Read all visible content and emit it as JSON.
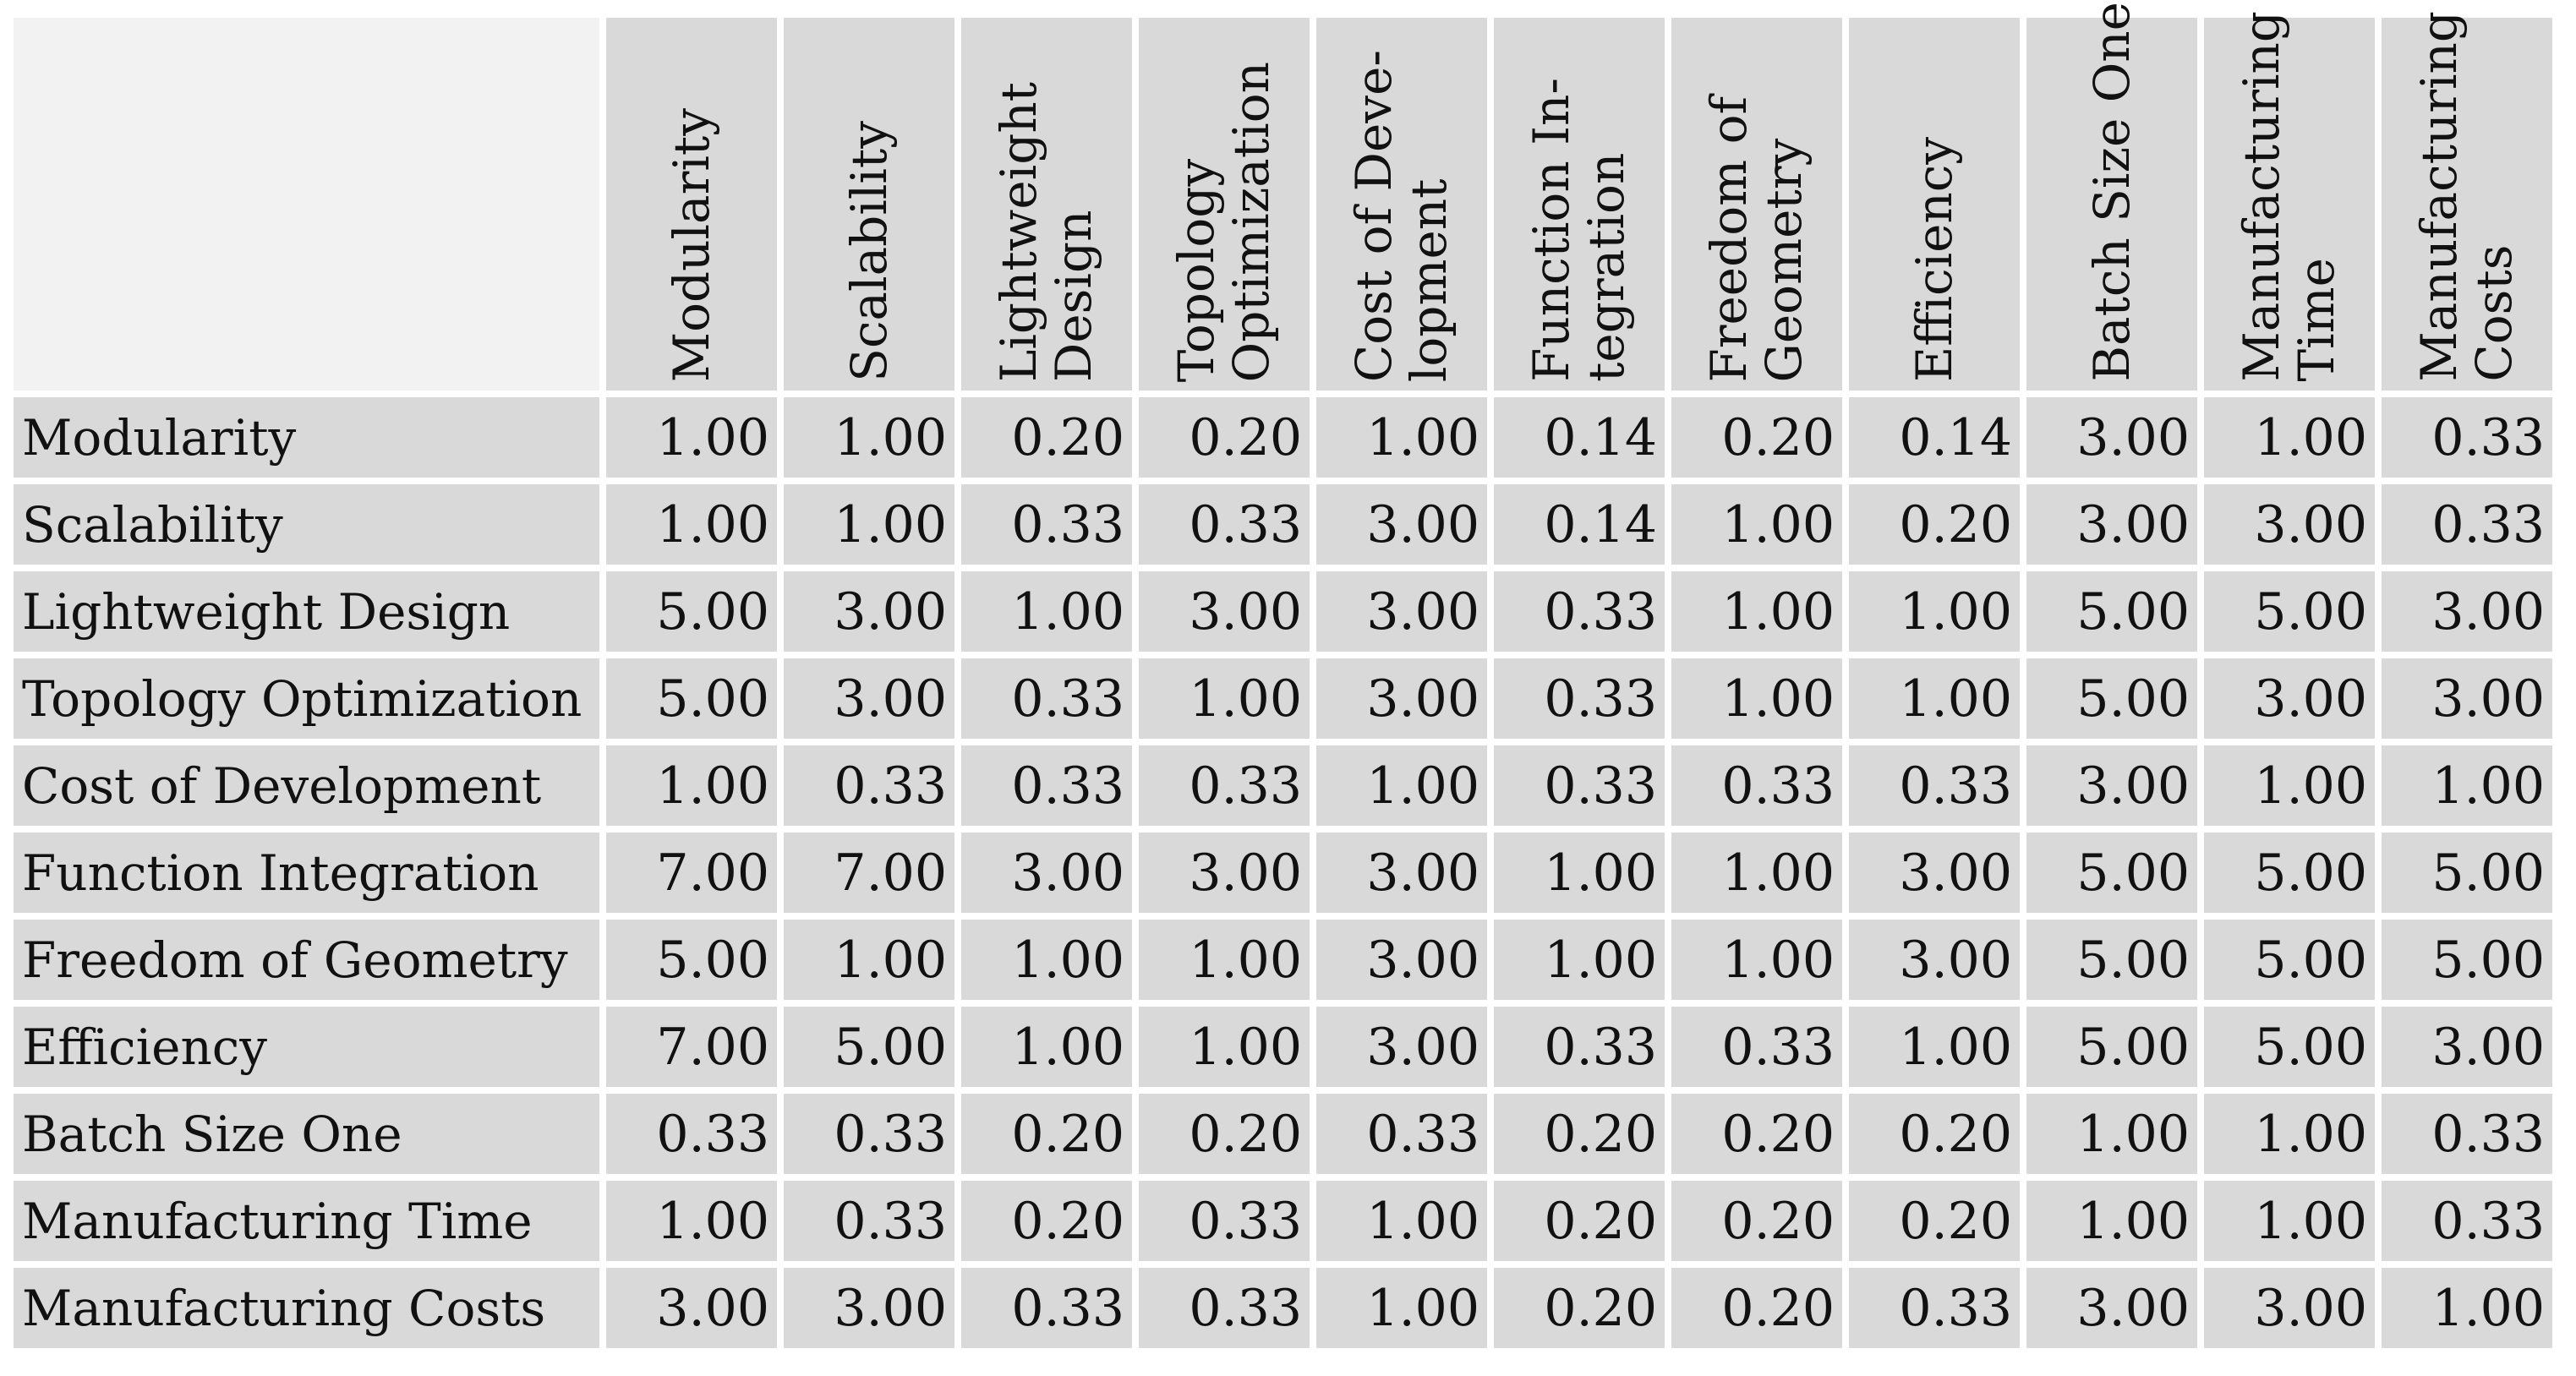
{
  "table": {
    "corner_label": "",
    "column_headers": [
      {
        "lines": [
          "Modularity"
        ]
      },
      {
        "lines": [
          "Scalability"
        ]
      },
      {
        "lines": [
          "Lightweight",
          "Design"
        ]
      },
      {
        "lines": [
          "Topology",
          "Optimization"
        ]
      },
      {
        "lines": [
          "Cost of Deve-",
          "lopment"
        ]
      },
      {
        "lines": [
          "Function In-",
          "tegration"
        ]
      },
      {
        "lines": [
          "Freedom of",
          "Geometry"
        ]
      },
      {
        "lines": [
          "Efficiency"
        ]
      },
      {
        "lines": [
          "Batch Size One"
        ]
      },
      {
        "lines": [
          "Manufacturing",
          "Time"
        ]
      },
      {
        "lines": [
          "Manufacturing",
          "Costs"
        ]
      }
    ],
    "rows": [
      {
        "label": "Modularity",
        "values": [
          "1.00",
          "1.00",
          "0.20",
          "0.20",
          "1.00",
          "0.14",
          "0.20",
          "0.14",
          "3.00",
          "1.00",
          "0.33"
        ]
      },
      {
        "label": "Scalability",
        "values": [
          "1.00",
          "1.00",
          "0.33",
          "0.33",
          "3.00",
          "0.14",
          "1.00",
          "0.20",
          "3.00",
          "3.00",
          "0.33"
        ]
      },
      {
        "label": "Lightweight Design",
        "values": [
          "5.00",
          "3.00",
          "1.00",
          "3.00",
          "3.00",
          "0.33",
          "1.00",
          "1.00",
          "5.00",
          "5.00",
          "3.00"
        ]
      },
      {
        "label": "Topology Optimization",
        "values": [
          "5.00",
          "3.00",
          "0.33",
          "1.00",
          "3.00",
          "0.33",
          "1.00",
          "1.00",
          "5.00",
          "3.00",
          "3.00"
        ]
      },
      {
        "label": "Cost of Development",
        "values": [
          "1.00",
          "0.33",
          "0.33",
          "0.33",
          "1.00",
          "0.33",
          "0.33",
          "0.33",
          "3.00",
          "1.00",
          "1.00"
        ]
      },
      {
        "label": "Function Integration",
        "values": [
          "7.00",
          "7.00",
          "3.00",
          "3.00",
          "3.00",
          "1.00",
          "1.00",
          "3.00",
          "5.00",
          "5.00",
          "5.00"
        ]
      },
      {
        "label": "Freedom of Geometry",
        "values": [
          "5.00",
          "1.00",
          "1.00",
          "1.00",
          "3.00",
          "1.00",
          "1.00",
          "3.00",
          "5.00",
          "5.00",
          "5.00"
        ]
      },
      {
        "label": "Efficiency",
        "values": [
          "7.00",
          "5.00",
          "1.00",
          "1.00",
          "3.00",
          "0.33",
          "0.33",
          "1.00",
          "5.00",
          "5.00",
          "3.00"
        ]
      },
      {
        "label": "Batch Size One",
        "values": [
          "0.33",
          "0.33",
          "0.20",
          "0.20",
          "0.33",
          "0.20",
          "0.20",
          "0.20",
          "1.00",
          "1.00",
          "0.33"
        ]
      },
      {
        "label": "Manufacturing Time",
        "values": [
          "1.00",
          "0.33",
          "0.20",
          "0.33",
          "1.00",
          "0.20",
          "0.20",
          "0.20",
          "1.00",
          "1.00",
          "0.33"
        ]
      },
      {
        "label": "Manufacturing Costs",
        "values": [
          "3.00",
          "3.00",
          "0.33",
          "0.33",
          "1.00",
          "0.20",
          "0.20",
          "0.33",
          "3.00",
          "3.00",
          "1.00"
        ]
      }
    ]
  },
  "colors": {
    "cell_bg": "#d9d9d9",
    "corner_bg": "#f2f2f2",
    "page_bg": "#ffffff",
    "text": "#111111"
  }
}
